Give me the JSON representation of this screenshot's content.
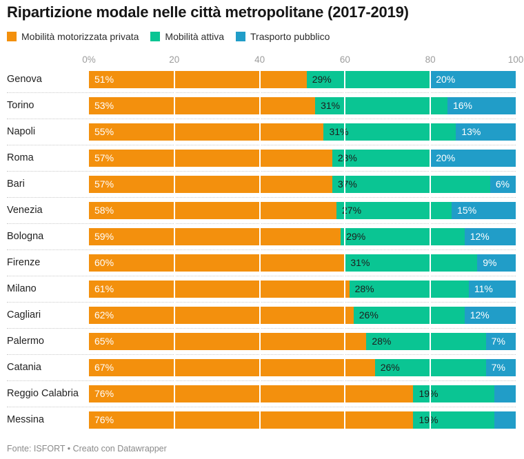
{
  "title": "Ripartizione modale nelle città metropolitane (2017-2019)",
  "legend": {
    "items": [
      {
        "label": "Mobilità motorizzata privata",
        "color": "#f3900d"
      },
      {
        "label": "Mobilità attiva",
        "color": "#0ac593"
      },
      {
        "label": "Trasporto pubblico",
        "color": "#219dc8"
      }
    ]
  },
  "axis": {
    "ticks": [
      {
        "label": "0%",
        "pos": 0
      },
      {
        "label": "20",
        "pos": 20
      },
      {
        "label": "40",
        "pos": 40
      },
      {
        "label": "60",
        "pos": 60
      },
      {
        "label": "80",
        "pos": 80
      },
      {
        "label": "100",
        "pos": 100
      }
    ]
  },
  "chart_data": {
    "type": "bar",
    "stacked": true,
    "orientation": "horizontal",
    "x_range": [
      0,
      100
    ],
    "grid": "white vertical lines at 20/40/60/80 over bars",
    "legend_position": "top",
    "categories": [
      "Genova",
      "Torino",
      "Napoli",
      "Roma",
      "Bari",
      "Venezia",
      "Bologna",
      "Firenze",
      "Milano",
      "Cagliari",
      "Palermo",
      "Catania",
      "Reggio Calabria",
      "Messina"
    ],
    "series": [
      {
        "name": "Mobilità motorizzata privata",
        "color": "#f3900d",
        "label_color": "#ffffff",
        "values": [
          51,
          53,
          55,
          57,
          57,
          58,
          59,
          60,
          61,
          62,
          65,
          67,
          76,
          76
        ],
        "labels": [
          "51%",
          "53%",
          "55%",
          "57%",
          "57%",
          "58%",
          "59%",
          "60%",
          "61%",
          "62%",
          "65%",
          "67%",
          "76%",
          "76%"
        ]
      },
      {
        "name": "Mobilità attiva",
        "color": "#0ac593",
        "label_color": "#1d1d1d",
        "values": [
          29,
          31,
          31,
          23,
          37,
          27,
          29,
          31,
          28,
          26,
          28,
          26,
          19,
          19
        ],
        "labels": [
          "29%",
          "31%",
          "31%",
          "23%",
          "37%",
          "27%",
          "29%",
          "31%",
          "28%",
          "26%",
          "28%",
          "26%",
          "19%",
          "19%"
        ]
      },
      {
        "name": "Trasporto pubblico",
        "color": "#219dc8",
        "label_color": "#ffffff",
        "values": [
          20,
          16,
          13,
          20,
          6,
          15,
          12,
          9,
          11,
          12,
          7,
          7,
          5,
          5
        ],
        "labels": [
          "20%",
          "16%",
          "13%",
          "20%",
          "6%",
          "15%",
          "12%",
          "9%",
          "11%",
          "12%",
          "7%",
          "7%",
          "",
          ""
        ]
      }
    ]
  },
  "footer": "Fonte: ISFORT • Creato con Datawrapper"
}
